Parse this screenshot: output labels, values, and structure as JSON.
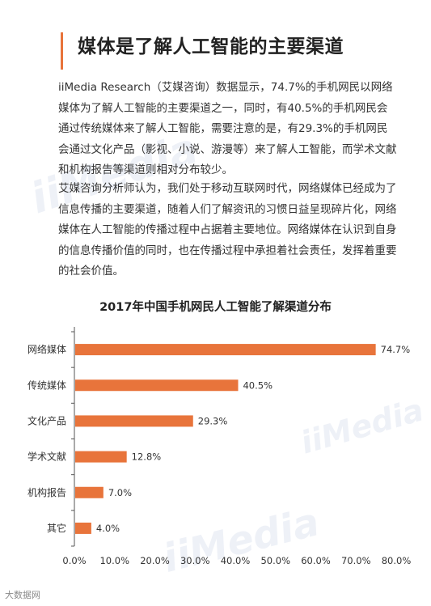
{
  "header": {
    "title": "媒体是了解人工智能的主要渠道",
    "paragraphs": [
      "iiMedia Research（艾媒咨询）数据显示，74.7%的手机网民以网络媒体为了解人工智能的主要渠道之一，同时，有40.5%的手机网民会通过传统媒体来了解人工智能，需要注意的是，有29.3%的手机网民会通过文化产品（影视、小说、游漫等）来了解人工智能，而学术文献和机构报告等渠道则相对分布较少。",
      "艾媒咨询分析师认为，我们处于移动互联网时代，网络媒体已经成为了信息传播的主要渠道，随着人们了解资讯的习惯日益呈现碎片化，网络媒体在人工智能的传播过程中占据着主要地位。网络媒体在认识到自身的信息传播价值的同时，也在传播过程中承担着社会责任，发挥着重要的社会价值。"
    ]
  },
  "watermarks": [
    "iiMedia",
    "iiMedia",
    "iiMedia"
  ],
  "footer": {
    "text": "大数据网"
  },
  "colors": {
    "bar": "#e8743b",
    "accent": "#e8743b",
    "axis": "#555555",
    "text": "#333333"
  },
  "chart_data": {
    "type": "bar",
    "orientation": "horizontal",
    "title": "2017年中国手机网民人工智能了解渠道分布",
    "categories": [
      "网络媒体",
      "传统媒体",
      "文化产品",
      "学术文献",
      "机构报告",
      "其它"
    ],
    "values": [
      74.7,
      40.5,
      29.3,
      12.8,
      7.0,
      4.0
    ],
    "value_labels": [
      "74.7%",
      "40.5%",
      "29.3%",
      "12.8%",
      "7.0%",
      "4.0%"
    ],
    "xlim": [
      0,
      80
    ],
    "xticks": [
      "0.0%",
      "10.0%",
      "20.0%",
      "30.0%",
      "40.0%",
      "50.0%",
      "60.0%",
      "70.0%",
      "80.0%"
    ],
    "grid": false,
    "xlabel": "",
    "ylabel": ""
  }
}
